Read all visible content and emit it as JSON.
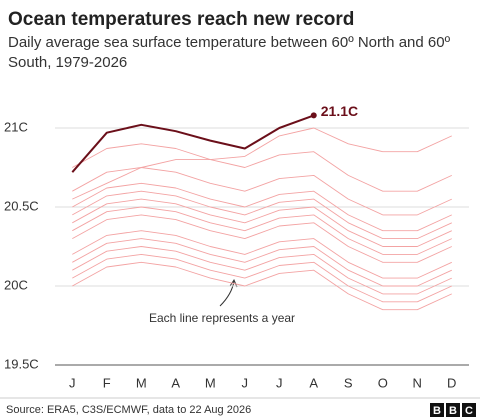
{
  "chart_data": {
    "type": "line",
    "title": "Ocean temperatures reach new record",
    "subtitle": "Daily average sea surface temperature between 60º North and 60º South, 1979-2026",
    "categories": [
      "J",
      "F",
      "M",
      "A",
      "M",
      "J",
      "J",
      "A",
      "S",
      "O",
      "N",
      "D"
    ],
    "ylim": [
      19.5,
      21.2
    ],
    "yticks": [
      {
        "value": 19.5,
        "label": "19.5C"
      },
      {
        "value": 20,
        "label": "20C"
      },
      {
        "value": 20.5,
        "label": "20.5C"
      },
      {
        "value": 21,
        "label": "21C"
      }
    ],
    "grid": true,
    "series": [
      {
        "color": "#f3a3a3",
        "values": [
          20.2,
          20.32,
          20.35,
          20.32,
          20.25,
          20.2,
          20.28,
          20.3,
          20.15,
          20.05,
          20.05,
          20.15
        ]
      },
      {
        "color": "#f3a3a3",
        "values": [
          20.15,
          20.27,
          20.3,
          20.27,
          20.2,
          20.15,
          20.23,
          20.25,
          20.1,
          20.0,
          20.0,
          20.1
        ]
      },
      {
        "color": "#f3a3a3",
        "values": [
          20.1,
          20.22,
          20.25,
          20.22,
          20.15,
          20.1,
          20.18,
          20.2,
          20.05,
          19.95,
          19.95,
          20.05
        ]
      },
      {
        "color": "#f3a3a3",
        "values": [
          20.05,
          20.17,
          20.2,
          20.17,
          20.1,
          20.05,
          20.13,
          20.15,
          20.0,
          19.9,
          19.9,
          20.0
        ]
      },
      {
        "color": "#f3a3a3",
        "values": [
          20.3,
          20.42,
          20.45,
          20.42,
          20.35,
          20.3,
          20.38,
          20.4,
          20.25,
          20.15,
          20.15,
          20.25
        ]
      },
      {
        "color": "#f3a3a3",
        "values": [
          20.35,
          20.47,
          20.5,
          20.47,
          20.4,
          20.35,
          20.43,
          20.45,
          20.3,
          20.2,
          20.2,
          20.3
        ]
      },
      {
        "color": "#f3a3a3",
        "values": [
          20.4,
          20.52,
          20.55,
          20.52,
          20.45,
          20.4,
          20.48,
          20.5,
          20.35,
          20.25,
          20.25,
          20.35
        ]
      },
      {
        "color": "#f3a3a3",
        "values": [
          20.0,
          20.12,
          20.15,
          20.12,
          20.05,
          20.0,
          20.08,
          20.1,
          19.95,
          19.85,
          19.85,
          19.95
        ]
      },
      {
        "color": "#f3a3a3",
        "values": [
          20.45,
          20.57,
          20.6,
          20.57,
          20.5,
          20.45,
          20.53,
          20.55,
          20.4,
          20.3,
          20.3,
          20.4
        ]
      },
      {
        "color": "#f3a3a3",
        "values": [
          20.5,
          20.62,
          20.65,
          20.62,
          20.55,
          20.5,
          20.58,
          20.6,
          20.45,
          20.35,
          20.35,
          20.45
        ]
      },
      {
        "color": "#f3a3a3",
        "values": [
          20.6,
          20.72,
          20.75,
          20.72,
          20.65,
          20.6,
          20.68,
          20.7,
          20.55,
          20.45,
          20.45,
          20.55
        ]
      },
      {
        "color": "#f3a3a3",
        "values": [
          20.75,
          20.87,
          20.9,
          20.87,
          20.8,
          20.75,
          20.83,
          20.85,
          20.7,
          20.6,
          20.6,
          20.7
        ]
      },
      {
        "color": "#f3a3a3",
        "values": [
          20.55,
          20.65,
          20.75,
          20.8,
          20.8,
          20.82,
          20.95,
          21.0,
          20.9,
          20.85,
          20.85,
          20.95
        ]
      },
      {
        "color": "#6b0f1a",
        "values": [
          20.72,
          20.97,
          21.02,
          20.98,
          20.92,
          20.87,
          21.0,
          21.08,
          null,
          null,
          null,
          null
        ]
      }
    ],
    "highlight_label": "21.1C",
    "annotation": "Each line represents a year",
    "source": "Source: ERA5, C3S/ECMWF, data to 22 Aug 2026",
    "logo": [
      "B",
      "B",
      "C"
    ]
  }
}
